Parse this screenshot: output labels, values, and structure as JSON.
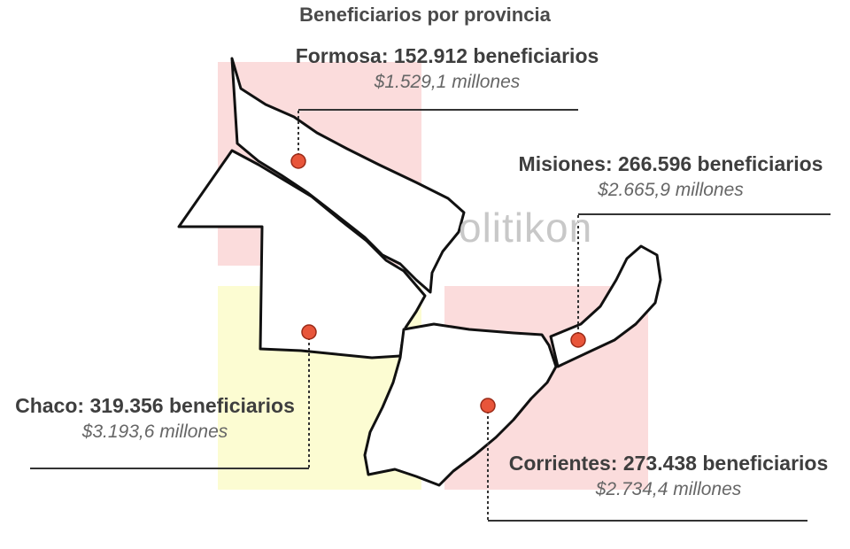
{
  "title": "Beneficiarios por provincia",
  "watermark": "olitikon",
  "colors": {
    "highlight_pink": "#fbdcdc",
    "highlight_yellow": "#fcfcd2",
    "marker": "#e8553a",
    "province_fill": "#ffffff",
    "outline": "#111111"
  },
  "provinces": [
    {
      "id": "formosa",
      "name": "Formosa: 152.912 beneficiarios",
      "amount": "$1.529,1 millones"
    },
    {
      "id": "misiones",
      "name": "Misiones: 266.596 beneficiarios",
      "amount": "$2.665,9 millones"
    },
    {
      "id": "chaco",
      "name": "Chaco: 319.356 beneficiarios",
      "amount": "$3.193,6 millones"
    },
    {
      "id": "corrientes",
      "name": "Corrientes: 273.438 beneficiarios",
      "amount": "$2.734,4 millones"
    }
  ]
}
